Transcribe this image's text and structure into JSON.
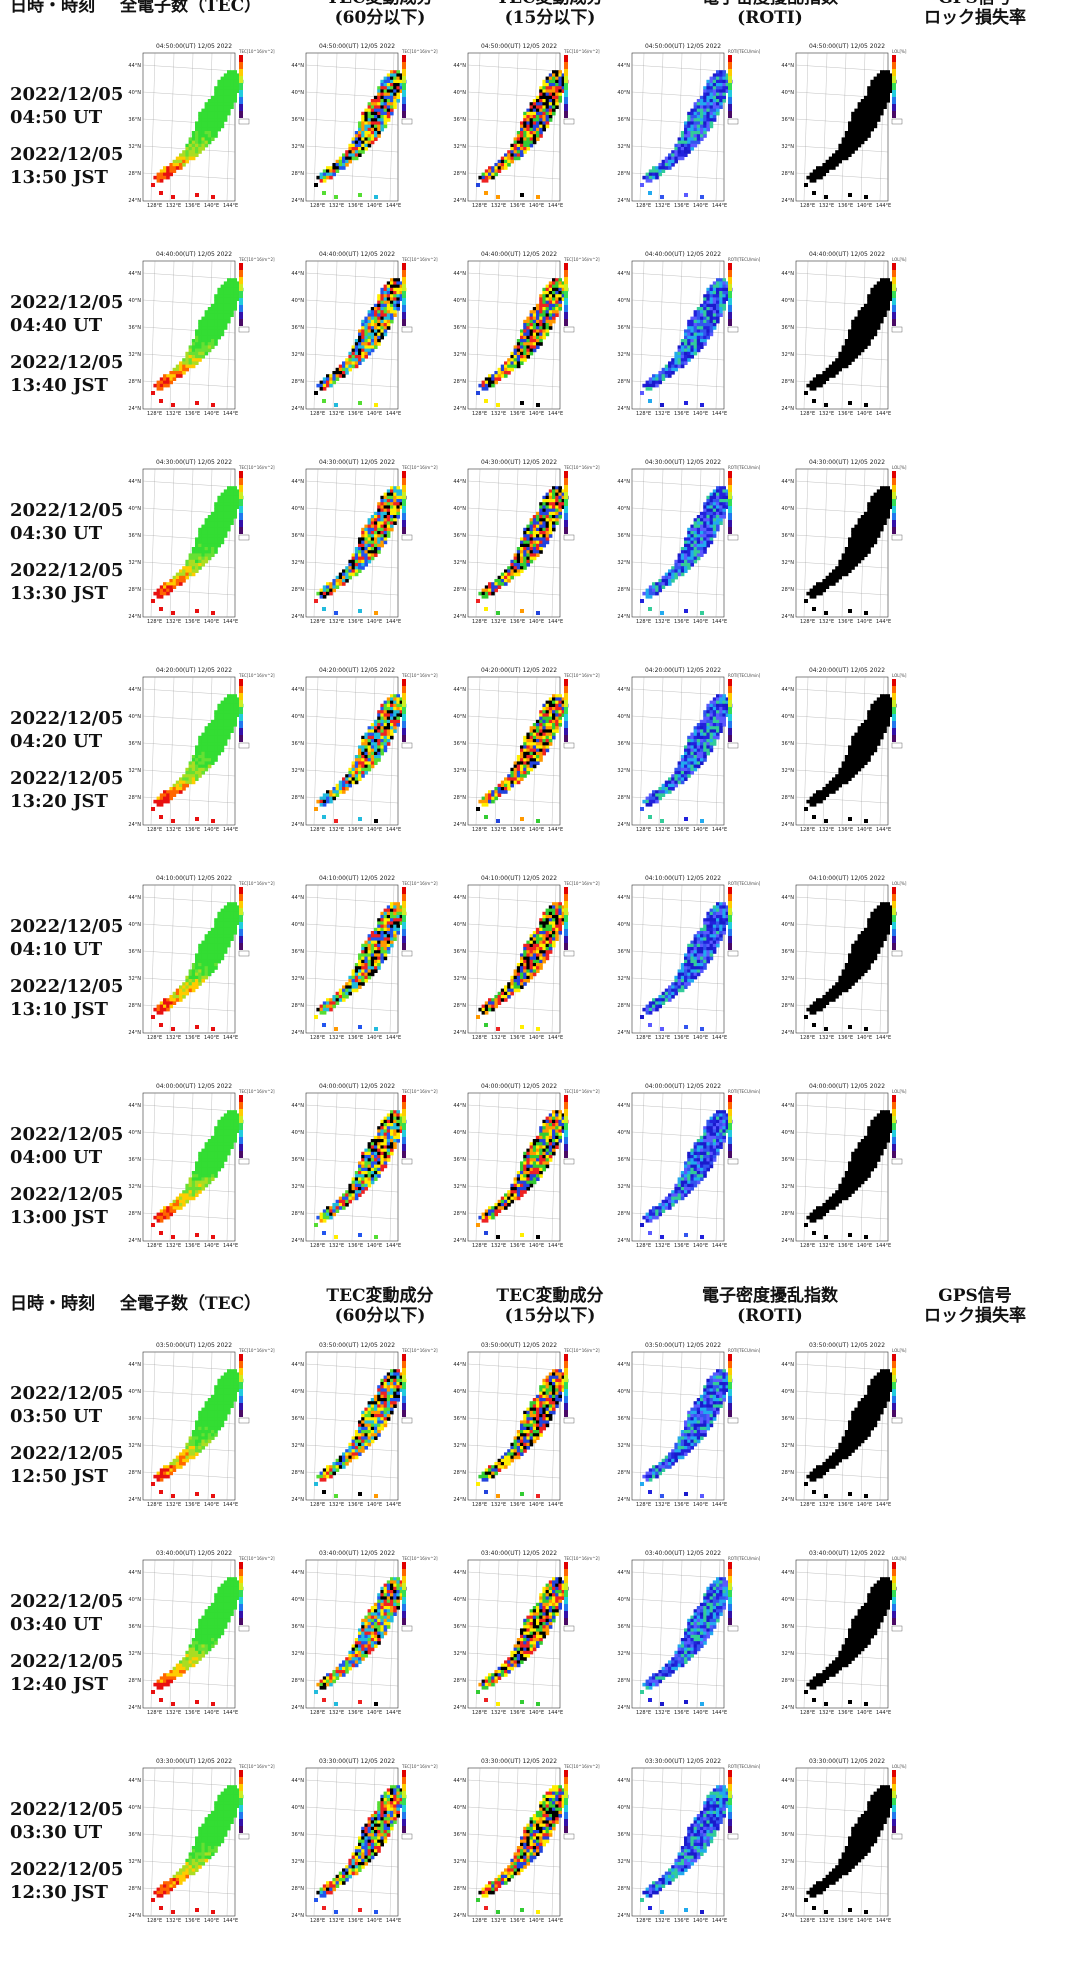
{
  "header": {
    "col_datetime": "日時・時刻",
    "col_tec": "全電子数（TEC）",
    "col_tec60_line1": "TEC変動成分",
    "col_tec60_line2": "(60分以下)",
    "col_tec15_line1": "TEC変動成分",
    "col_tec15_line2": "(15分以下)",
    "col_roti_line1": "電子密度擾乱指数",
    "col_roti_line2": "(ROTI)",
    "col_gps_line1": "GPS信号",
    "col_gps_line2": "ロック損失率"
  },
  "panel": {
    "lat_labels": [
      "44°N",
      "40°N",
      "36°N",
      "32°N",
      "28°N",
      "24°N"
    ],
    "lon_labels": [
      "128°E",
      "132°E",
      "136°E",
      "140°E",
      "144°E"
    ],
    "units": [
      "TEC[10^16/m^2]",
      "TEC[10^16/m^2]",
      "TEC[10^16/m^2]",
      "ROTI[TECU/min]",
      "LOL[%]"
    ]
  },
  "rows": [
    {
      "map_title": "04:50:00(UT) 12/05 2022",
      "date_ut": "2022/12/05",
      "time_ut": "04:50 UT",
      "date_jst": "2022/12/05",
      "time_jst": "13:50 JST"
    },
    {
      "map_title": "04:40:00(UT) 12/05 2022",
      "date_ut": "2022/12/05",
      "time_ut": "04:40 UT",
      "date_jst": "2022/12/05",
      "time_jst": "13:40 JST"
    },
    {
      "map_title": "04:30:00(UT) 12/05 2022",
      "date_ut": "2022/12/05",
      "time_ut": "04:30 UT",
      "date_jst": "2022/12/05",
      "time_jst": "13:30 JST"
    },
    {
      "map_title": "04:20:00(UT) 12/05 2022",
      "date_ut": "2022/12/05",
      "time_ut": "04:20 UT",
      "date_jst": "2022/12/05",
      "time_jst": "13:20 JST"
    },
    {
      "map_title": "04:10:00(UT) 12/05 2022",
      "date_ut": "2022/12/05",
      "time_ut": "04:10 UT",
      "date_jst": "2022/12/05",
      "time_jst": "13:10 JST"
    },
    {
      "map_title": "04:00:00(UT) 12/05 2022",
      "date_ut": "2022/12/05",
      "time_ut": "04:00 UT",
      "date_jst": "2022/12/05",
      "time_jst": "13:00 JST"
    },
    {
      "map_title": "03:50:00(UT) 12/05 2022",
      "date_ut": "2022/12/05",
      "time_ut": "03:50 UT",
      "date_jst": "2022/12/05",
      "time_jst": "12:50 JST"
    },
    {
      "map_title": "03:40:00(UT) 12/05 2022",
      "date_ut": "2022/12/05",
      "time_ut": "03:40 UT",
      "date_jst": "2022/12/05",
      "time_jst": "12:40 JST"
    },
    {
      "map_title": "03:30:00(UT) 12/05 2022",
      "date_ut": "2022/12/05",
      "time_ut": "03:30 UT",
      "date_jst": "2022/12/05",
      "time_jst": "12:30 JST"
    }
  ],
  "colors": {
    "tec": [
      "#33dd33",
      "#66e033",
      "#aadd22",
      "#ffcc00",
      "#ff6600",
      "#e81010"
    ],
    "tec60": [
      "#ee2222",
      "#ff9900",
      "#ffee00",
      "#55dd33",
      "#22bbdd",
      "#2255ee",
      "#000000"
    ],
    "tec15": [
      "#ee2222",
      "#000000",
      "#ff9900",
      "#ffee00",
      "#33cc33",
      "#2244dd"
    ],
    "roti": [
      "#2222dd",
      "#3355ee",
      "#1a1acc",
      "#22aaee",
      "#33cc99",
      "#5a5aff"
    ],
    "gps": [
      "#000000"
    ],
    "colorbar": [
      "#e00000",
      "#ff6600",
      "#ffcc00",
      "#ccee22",
      "#33dd55",
      "#22ccdd",
      "#2277ee",
      "#3311aa",
      "#4a0a66"
    ]
  }
}
